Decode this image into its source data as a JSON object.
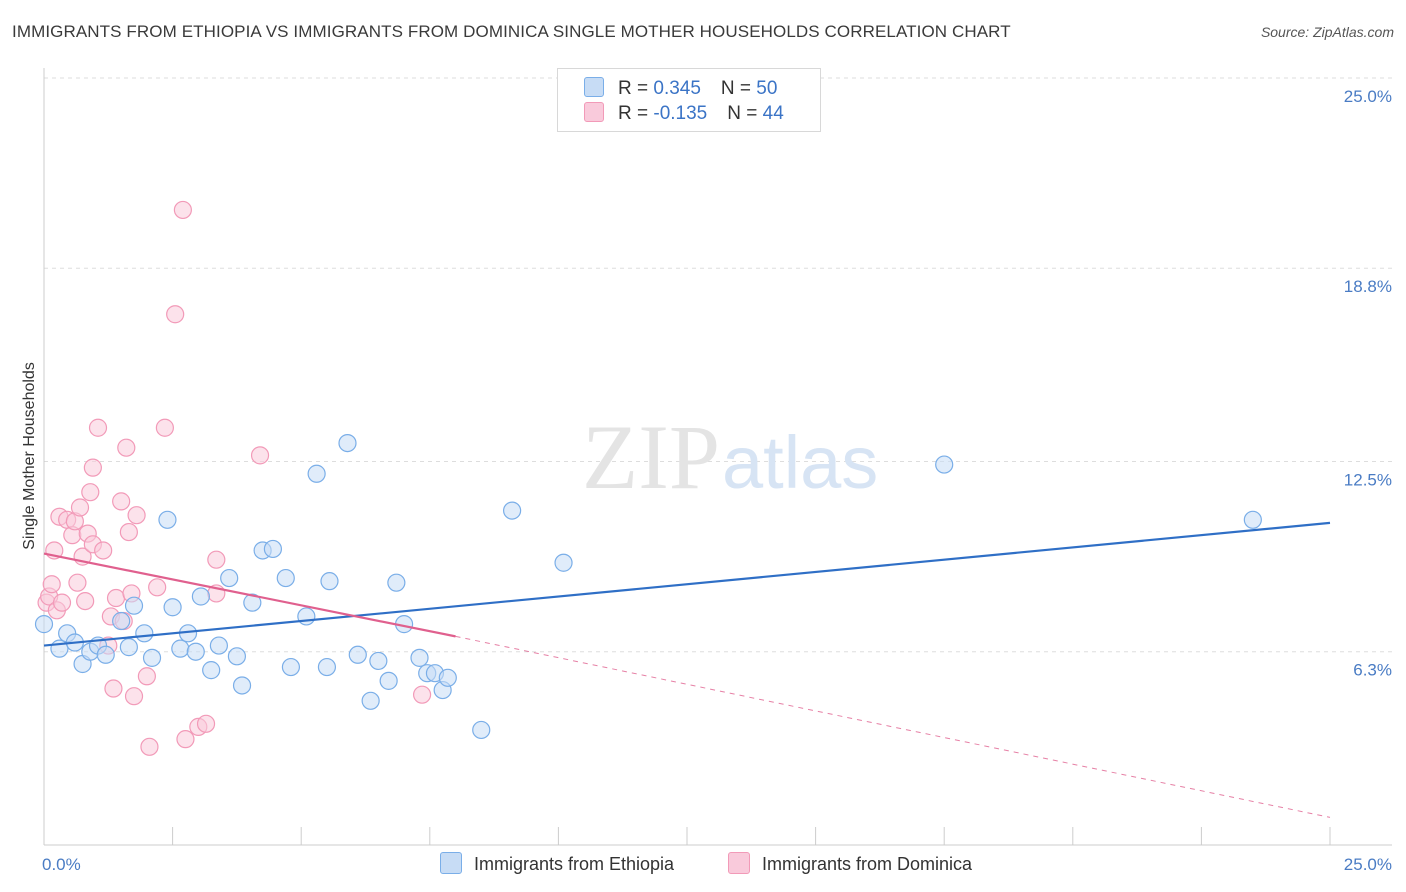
{
  "title": "IMMIGRANTS FROM ETHIOPIA VS IMMIGRANTS FROM DOMINICA SINGLE MOTHER HOUSEHOLDS CORRELATION CHART",
  "source": "Source: ZipAtlas.com",
  "watermark": {
    "zip": "ZIP",
    "atlas": "atlas"
  },
  "colors": {
    "ethiopia": "#7aaee8",
    "ethiopia_fill": "#c7dcf5",
    "ethiopia_line": "#2f6fc6",
    "dominica": "#f29ab8",
    "dominica_fill": "#f9cadb",
    "dominica_line": "#e0608e"
  },
  "legend": {
    "rows": [
      {
        "r_label": "R = ",
        "r_value": "0.345",
        "n_label": "N = ",
        "n_value": "50"
      },
      {
        "r_label": "R = ",
        "r_value": "-0.135",
        "n_label": "N = ",
        "n_value": "44"
      }
    ]
  },
  "bottom_legend": {
    "ethiopia": "Immigrants from Ethiopia",
    "dominica": "Immigrants from Dominica"
  },
  "chart_data": {
    "type": "scatter",
    "title": "IMMIGRANTS FROM ETHIOPIA VS IMMIGRANTS FROM DOMINICA SINGLE MOTHER HOUSEHOLDS CORRELATION CHART",
    "xlabel": "",
    "ylabel": "Single Mother Households",
    "xlim": [
      0,
      25
    ],
    "ylim": [
      0,
      25
    ],
    "x_ticks": [
      "0.0%",
      "25.0%"
    ],
    "y_ticks": [
      {
        "value": 25.0,
        "label": "25.0%"
      },
      {
        "value": 18.8,
        "label": "18.8%"
      },
      {
        "value": 12.5,
        "label": "12.5%"
      },
      {
        "value": 6.3,
        "label": "6.3%"
      }
    ],
    "grid": true,
    "legend_position": "top-center",
    "series": [
      {
        "name": "Immigrants from Ethiopia",
        "trend": {
          "x": [
            0,
            25
          ],
          "y": [
            6.5,
            10.5
          ]
        },
        "points": [
          [
            0.0,
            7.2
          ],
          [
            0.3,
            6.4
          ],
          [
            0.45,
            6.9
          ],
          [
            0.6,
            6.6
          ],
          [
            0.75,
            5.9
          ],
          [
            0.9,
            6.3
          ],
          [
            1.05,
            6.5
          ],
          [
            1.2,
            6.2
          ],
          [
            1.5,
            7.3
          ],
          [
            1.65,
            6.45
          ],
          [
            1.75,
            7.8
          ],
          [
            1.95,
            6.9
          ],
          [
            2.1,
            6.1
          ],
          [
            2.4,
            10.6
          ],
          [
            2.5,
            7.75
          ],
          [
            2.65,
            6.4
          ],
          [
            2.8,
            6.9
          ],
          [
            2.95,
            6.3
          ],
          [
            3.05,
            8.1
          ],
          [
            3.25,
            5.7
          ],
          [
            3.4,
            6.5
          ],
          [
            3.6,
            8.7
          ],
          [
            3.75,
            6.15
          ],
          [
            3.85,
            5.2
          ],
          [
            4.05,
            7.9
          ],
          [
            4.25,
            9.6
          ],
          [
            4.45,
            9.65
          ],
          [
            4.7,
            8.7
          ],
          [
            4.8,
            5.8
          ],
          [
            5.1,
            7.45
          ],
          [
            5.3,
            12.1
          ],
          [
            5.5,
            5.8
          ],
          [
            5.55,
            8.6
          ],
          [
            5.9,
            13.1
          ],
          [
            6.1,
            6.2
          ],
          [
            6.35,
            4.7
          ],
          [
            6.5,
            6.0
          ],
          [
            6.7,
            5.35
          ],
          [
            6.85,
            8.55
          ],
          [
            7.0,
            7.2
          ],
          [
            7.3,
            6.1
          ],
          [
            7.45,
            5.6
          ],
          [
            7.6,
            5.6
          ],
          [
            7.75,
            5.05
          ],
          [
            7.85,
            5.45
          ],
          [
            8.5,
            3.75
          ],
          [
            9.1,
            10.9
          ],
          [
            10.1,
            9.2
          ],
          [
            17.5,
            12.4
          ],
          [
            23.5,
            10.6
          ]
        ]
      },
      {
        "name": "Immigrants from Dominica",
        "trend": {
          "x": [
            0,
            8
          ],
          "y": [
            9.5,
            6.8
          ],
          "dashed_to": {
            "x": 25,
            "y": 0.9
          }
        },
        "points": [
          [
            0.05,
            7.9
          ],
          [
            0.1,
            8.1
          ],
          [
            0.15,
            8.5
          ],
          [
            0.2,
            9.6
          ],
          [
            0.25,
            7.65
          ],
          [
            0.3,
            10.7
          ],
          [
            0.35,
            7.9
          ],
          [
            0.45,
            10.6
          ],
          [
            0.55,
            10.1
          ],
          [
            0.6,
            10.55
          ],
          [
            0.65,
            8.55
          ],
          [
            0.7,
            11.0
          ],
          [
            0.75,
            9.4
          ],
          [
            0.8,
            7.95
          ],
          [
            0.85,
            10.15
          ],
          [
            0.9,
            11.5
          ],
          [
            0.95,
            12.3
          ],
          [
            0.95,
            9.8
          ],
          [
            1.05,
            13.6
          ],
          [
            1.15,
            9.6
          ],
          [
            1.25,
            6.5
          ],
          [
            1.3,
            7.45
          ],
          [
            1.35,
            5.1
          ],
          [
            1.4,
            8.05
          ],
          [
            1.5,
            11.2
          ],
          [
            1.55,
            7.3
          ],
          [
            1.6,
            12.95
          ],
          [
            1.65,
            10.2
          ],
          [
            1.7,
            8.2
          ],
          [
            1.75,
            4.85
          ],
          [
            1.8,
            10.75
          ],
          [
            2.0,
            5.5
          ],
          [
            2.05,
            3.2
          ],
          [
            2.2,
            8.4
          ],
          [
            2.35,
            13.6
          ],
          [
            2.55,
            17.3
          ],
          [
            2.7,
            20.7
          ],
          [
            2.75,
            3.45
          ],
          [
            3.0,
            3.85
          ],
          [
            3.15,
            3.95
          ],
          [
            3.35,
            9.3
          ],
          [
            3.35,
            8.2
          ],
          [
            4.2,
            12.7
          ],
          [
            7.35,
            4.9
          ]
        ]
      }
    ]
  }
}
